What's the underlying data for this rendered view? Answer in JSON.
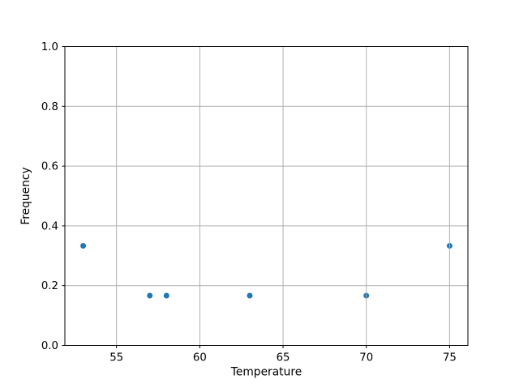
{
  "figure": {
    "background": "#ffffff"
  },
  "chart_data": {
    "type": "scatter",
    "title": "",
    "xlabel": "Temperature",
    "ylabel": "Frequency",
    "x": [
      53,
      57,
      58,
      63,
      70,
      75
    ],
    "y": [
      0.3333,
      0.1667,
      0.1667,
      0.1667,
      0.1667,
      0.3333
    ],
    "xlim": [
      51.9,
      76.1
    ],
    "ylim": [
      0.0,
      1.0
    ],
    "xticks": [
      55,
      60,
      65,
      70,
      75
    ],
    "xtick_labels": [
      "55",
      "60",
      "65",
      "70",
      "75"
    ],
    "yticks": [
      0.0,
      0.2,
      0.4,
      0.6,
      0.8,
      1.0
    ],
    "ytick_labels": [
      "0.0",
      "0.2",
      "0.4",
      "0.6",
      "0.8",
      "1.0"
    ],
    "grid": true,
    "grid_over_points": true,
    "legend_position": "none",
    "marker_color": "#1f77b4",
    "grid_color": "#b0b0b0",
    "axis_color": "#000000",
    "text_color": "#000000"
  }
}
